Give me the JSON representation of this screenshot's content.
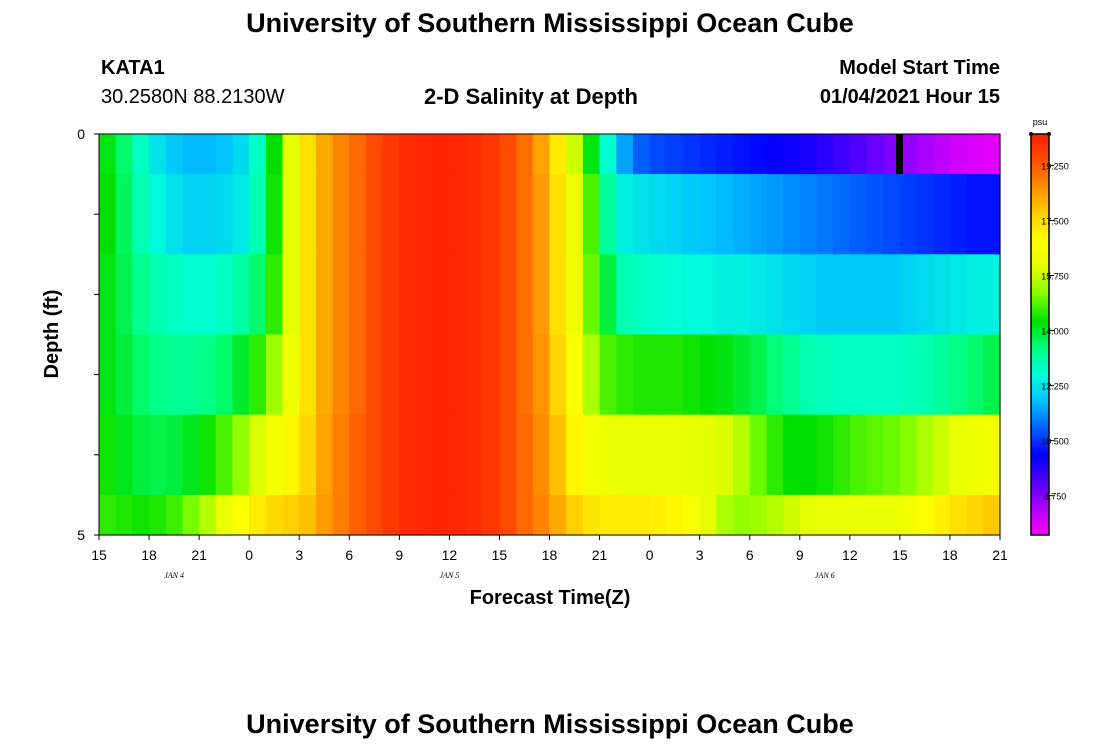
{
  "header": {
    "title": "University of Southern Mississippi Ocean Cube",
    "station_id": "KATA1",
    "coords": "30.2580N 88.2130W",
    "plot_title": "2-D Salinity at Depth",
    "start_label": "Model Start Time",
    "start_value": "01/04/2021 Hour 15"
  },
  "footer": {
    "title": "University of Southern Mississippi Ocean Cube"
  },
  "chart_data": {
    "type": "heatmap",
    "title": "2-D Salinity at Depth",
    "xlabel": "Forecast Time(Z)",
    "ylabel": "Depth (ft)",
    "units": "psu",
    "x_ticks": [
      "15",
      "18",
      "21",
      "0",
      "3",
      "6",
      "9",
      "12",
      "15",
      "18",
      "21",
      "0",
      "3",
      "6",
      "9",
      "12",
      "15",
      "18",
      "21"
    ],
    "y_ticks": [
      "0",
      "",
      "",
      "",
      "",
      "5"
    ],
    "day_labels": [
      {
        "label": "JAN 4",
        "hour": 4.5
      },
      {
        "label": "JAN 5",
        "hour": 21
      },
      {
        "label": "JAN 6",
        "hour": 43.5
      }
    ],
    "x_range_hours": [
      0,
      54
    ],
    "depth_layers": 5,
    "colorbar": {
      "ticks": [
        "19.250",
        "17.500",
        "15.750",
        "14.000",
        "12.250",
        "10.500",
        "8.750"
      ],
      "tick_values": [
        19.25,
        17.5,
        15.75,
        14.0,
        12.25,
        10.5,
        8.75
      ],
      "range": [
        7.5,
        20.25
      ],
      "colors": [
        "#ff00ff",
        "#b000ff",
        "#5000ff",
        "#0000ff",
        "#0060ff",
        "#00c0ff",
        "#00ffd8",
        "#00ff80",
        "#00e000",
        "#80ff00",
        "#e6ff00",
        "#ffff00",
        "#ffd000",
        "#ff9000",
        "#ff5000",
        "#ff1e00"
      ]
    },
    "missing_marker_hour": 48,
    "values": [
      [
        14.2,
        13.6,
        12.8,
        12.2,
        11.9,
        11.7,
        11.7,
        11.8,
        12.1,
        12.8,
        14.3,
        16.0,
        17.4,
        18.2,
        18.7,
        19.1,
        19.5,
        19.8,
        20.0,
        20.1,
        20.15,
        20.1,
        20.0,
        19.8,
        19.5,
        19.0,
        18.3,
        17.2,
        15.8,
        14.2,
        12.7,
        11.5,
        10.9,
        10.7,
        10.6,
        10.5,
        10.4,
        10.3,
        10.2,
        10.1,
        10.0,
        9.9,
        9.8,
        9.6,
        9.4,
        9.2,
        9.0,
        8.8,
        8.6,
        8.4,
        8.2,
        8.0,
        7.9,
        7.8
      ],
      [
        14.3,
        13.7,
        13.0,
        12.5,
        12.2,
        12.0,
        12.0,
        12.1,
        12.3,
        13.0,
        14.4,
        16.0,
        17.4,
        18.2,
        18.7,
        19.1,
        19.5,
        19.8,
        20.0,
        20.1,
        20.15,
        20.1,
        20.0,
        19.8,
        19.5,
        19.0,
        18.4,
        17.4,
        16.2,
        14.8,
        13.2,
        12.4,
        12.2,
        12.1,
        12.0,
        11.9,
        11.8,
        11.7,
        11.6,
        11.5,
        11.4,
        11.3,
        11.2,
        11.1,
        11.0,
        10.9,
        10.8,
        10.7,
        10.6,
        10.5,
        10.4,
        10.3,
        10.2,
        10.2
      ],
      [
        14.2,
        13.8,
        13.3,
        13.0,
        12.8,
        12.7,
        12.7,
        12.8,
        13.1,
        13.6,
        14.6,
        16.0,
        17.4,
        18.2,
        18.7,
        19.1,
        19.5,
        19.8,
        20.0,
        20.1,
        20.15,
        20.1,
        20.0,
        19.8,
        19.5,
        19.0,
        18.4,
        17.4,
        16.3,
        15.0,
        13.9,
        13.0,
        12.8,
        12.7,
        12.6,
        12.5,
        12.5,
        12.4,
        12.4,
        12.3,
        12.2,
        12.1,
        12.0,
        11.9,
        11.9,
        11.9,
        11.9,
        11.9,
        12.0,
        12.1,
        12.2,
        12.3,
        12.4,
        12.4
      ],
      [
        14.2,
        13.9,
        13.6,
        13.4,
        13.3,
        13.3,
        13.4,
        13.6,
        14.0,
        14.6,
        15.4,
        16.3,
        17.4,
        18.2,
        18.7,
        19.1,
        19.5,
        19.8,
        20.0,
        20.1,
        20.15,
        20.1,
        20.0,
        19.8,
        19.5,
        19.0,
        18.5,
        17.6,
        16.6,
        15.5,
        14.8,
        14.6,
        14.5,
        14.5,
        14.5,
        14.4,
        14.3,
        14.2,
        14.0,
        13.8,
        13.5,
        13.3,
        13.0,
        12.9,
        12.8,
        12.8,
        12.8,
        12.8,
        12.9,
        13.0,
        13.2,
        13.4,
        13.6,
        13.8
      ],
      [
        14.4,
        14.1,
        13.9,
        13.8,
        13.9,
        14.1,
        14.4,
        14.8,
        15.3,
        15.9,
        16.5,
        17.0,
        17.6,
        18.3,
        18.8,
        19.2,
        19.5,
        19.8,
        20.0,
        20.1,
        20.15,
        20.1,
        20.0,
        19.8,
        19.5,
        19.1,
        18.6,
        17.9,
        17.0,
        16.4,
        16.2,
        16.1,
        16.1,
        16.1,
        16.1,
        16.0,
        16.0,
        15.9,
        15.6,
        15.0,
        14.6,
        14.3,
        14.3,
        14.4,
        14.6,
        14.8,
        14.9,
        15.0,
        15.2,
        15.5,
        15.8,
        16.1,
        16.3,
        16.4
      ],
      [
        14.6,
        14.5,
        14.4,
        14.5,
        14.7,
        15.1,
        15.6,
        16.2,
        16.8,
        17.2,
        17.5,
        17.7,
        17.9,
        18.4,
        18.8,
        19.2,
        19.5,
        19.8,
        20.0,
        20.1,
        20.15,
        20.1,
        20.0,
        19.8,
        19.5,
        19.1,
        18.7,
        18.2,
        17.7,
        17.3,
        17.2,
        17.2,
        17.2,
        17.1,
        17.0,
        16.6,
        16.0,
        15.5,
        15.3,
        15.4,
        15.6,
        15.8,
        16.0,
        16.1,
        16.1,
        16.2,
        16.2,
        16.2,
        16.4,
        16.7,
        17.1,
        17.4,
        17.6,
        17.8
      ]
    ]
  }
}
